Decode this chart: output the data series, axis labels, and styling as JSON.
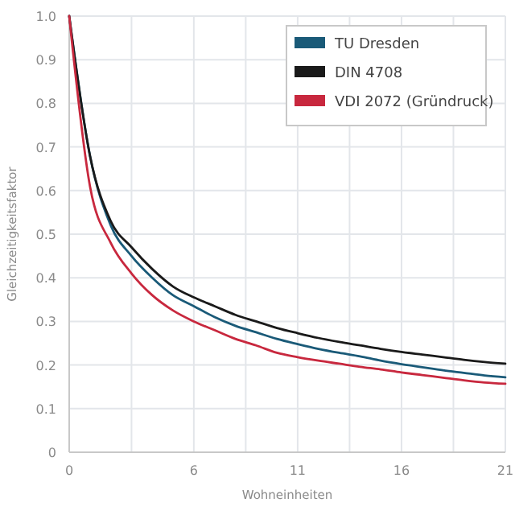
{
  "chart_data": {
    "type": "line",
    "xlabel": "Wohneinheiten",
    "ylabel": "Gleichzeitigkeitsfaktor",
    "x": [
      0,
      1,
      2,
      3,
      4,
      5,
      6,
      7,
      8,
      9,
      10,
      11,
      12,
      13,
      14,
      15,
      16,
      17,
      18,
      19,
      20,
      21
    ],
    "xlim": [
      0,
      21
    ],
    "xticks": [
      0,
      {
        "value": 3,
        "label": null
      },
      6,
      {
        "value": 8.5,
        "label": null
      },
      11,
      {
        "value": 13.5,
        "label": null
      },
      16,
      {
        "value": 18.5,
        "label": null
      },
      21
    ],
    "ylim": [
      0,
      1
    ],
    "yticks": [
      0,
      0.1,
      0.2,
      0.3,
      0.4,
      0.5,
      0.6,
      0.7,
      0.8,
      0.9,
      {
        "value": 1,
        "label": "1.0"
      }
    ],
    "grid": true,
    "legend": "top right",
    "marker": "none",
    "line_style": "solid",
    "series": [
      {
        "name": "TU Dresden",
        "color": "#1a5a78",
        "values": [
          1,
          0.68,
          0.52,
          0.45,
          0.4,
          0.36,
          0.335,
          0.31,
          0.29,
          0.275,
          0.26,
          0.248,
          0.237,
          0.228,
          0.22,
          0.21,
          0.202,
          0.195,
          0.188,
          0.182,
          0.176,
          0.172
        ]
      },
      {
        "name": "DIN 4708",
        "color": "#1a1a1a",
        "values": [
          1,
          0.68,
          0.53,
          0.47,
          0.42,
          0.38,
          0.355,
          0.335,
          0.315,
          0.3,
          0.285,
          0.273,
          0.262,
          0.253,
          0.245,
          0.237,
          0.23,
          0.224,
          0.218,
          0.212,
          0.207,
          0.203
        ]
      },
      {
        "name": "VDI 2072 (Gründruck)",
        "color": "#c8283e",
        "values": [
          1,
          0.61,
          0.48,
          0.41,
          0.36,
          0.325,
          0.3,
          0.28,
          0.26,
          0.245,
          0.228,
          0.218,
          0.21,
          0.203,
          0.196,
          0.19,
          0.183,
          0.177,
          0.171,
          0.165,
          0.16,
          0.157
        ]
      }
    ]
  }
}
